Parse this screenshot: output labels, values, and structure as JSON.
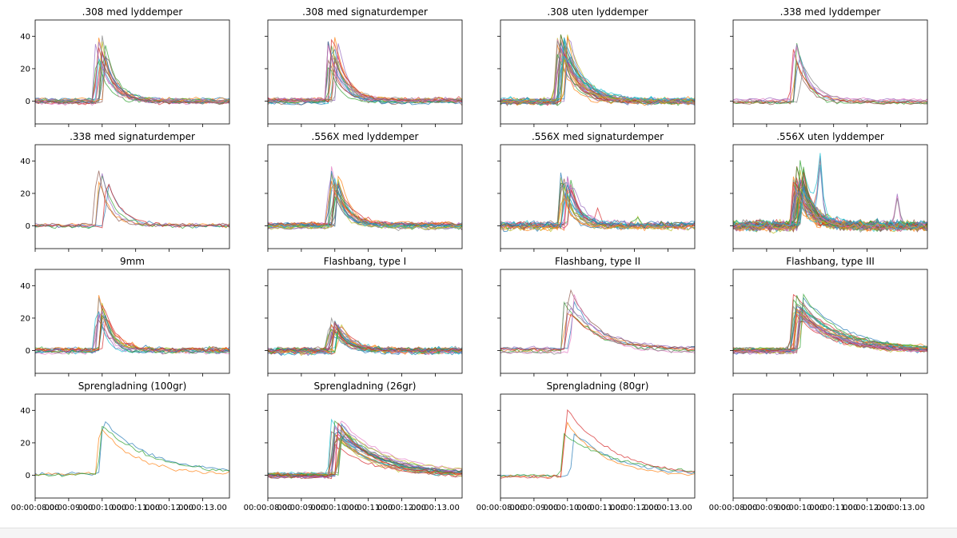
{
  "chart_data": {
    "type": "line",
    "layout": "4x4 grid of small-multiple line plots, shared x and y axes",
    "x_range": [
      "00:00:08.00",
      "00:00:13.80"
    ],
    "x_ticks": [
      "00:00:08.00",
      "00:00:09.00",
      "00:00:10.00",
      "00:00:11.00",
      "00:00:12.00",
      "00:00:13.00"
    ],
    "y_range": [
      -14,
      50
    ],
    "y_ticks": [
      0,
      20,
      40
    ],
    "grid": false,
    "series_palette": [
      "#1f77b4",
      "#ff7f0e",
      "#2ca02c",
      "#d62728",
      "#9467bd",
      "#8c564b",
      "#e377c2",
      "#7f7f7f",
      "#bcbd22",
      "#17becf"
    ],
    "panels": [
      {
        "title": ".308 med lyddemper",
        "n_series": 18,
        "onset_s": 9.85,
        "peak": 40,
        "decay_s": 0.35,
        "noise": 1.2,
        "spurs": []
      },
      {
        "title": ".308 med signaturdemper",
        "n_series": 18,
        "onset_s": 9.85,
        "peak": 42,
        "decay_s": 0.35,
        "noise": 1.2,
        "spurs": []
      },
      {
        "title": ".308 uten lyddemper",
        "n_series": 30,
        "onset_s": 9.75,
        "peak": 42,
        "decay_s": 0.5,
        "noise": 1.5,
        "spurs": []
      },
      {
        "title": ".338 med lyddemper",
        "n_series": 8,
        "onset_s": 9.8,
        "peak": 40,
        "decay_s": 0.35,
        "noise": 1.0,
        "spurs": []
      },
      {
        "title": ".338 med signaturdemper",
        "n_series": 6,
        "onset_s": 9.9,
        "peak": 41,
        "decay_s": 0.35,
        "noise": 1.2,
        "spurs": []
      },
      {
        "title": ".556X med lyddemper",
        "n_series": 22,
        "onset_s": 9.9,
        "peak": 36,
        "decay_s": 0.35,
        "noise": 1.3,
        "spurs": []
      },
      {
        "title": ".556X med signaturdemper",
        "n_series": 22,
        "onset_s": 9.85,
        "peak": 34,
        "decay_s": 0.3,
        "noise": 2.0,
        "spurs": [
          {
            "x": 10.9,
            "y": 8
          },
          {
            "x": 12.1,
            "y": 6
          }
        ]
      },
      {
        "title": ".556X uten lyddemper",
        "n_series": 60,
        "onset_s": 9.85,
        "peak": 36,
        "decay_s": 0.35,
        "noise": 2.5,
        "spurs": [
          {
            "x": 10.6,
            "y": 35
          },
          {
            "x": 12.9,
            "y": 20
          }
        ]
      },
      {
        "title": "9mm",
        "n_series": 15,
        "onset_s": 9.85,
        "peak": 33,
        "decay_s": 0.3,
        "noise": 1.5,
        "spurs": []
      },
      {
        "title": "Flashbang, type I",
        "n_series": 25,
        "onset_s": 9.9,
        "peak": 20,
        "decay_s": 0.4,
        "noise": 1.5,
        "spurs": []
      },
      {
        "title": "Flashbang, type II",
        "n_series": 8,
        "onset_s": 9.95,
        "peak": 38,
        "decay_s": 0.9,
        "noise": 1.0,
        "spurs": []
      },
      {
        "title": "Flashbang, type III",
        "n_series": 28,
        "onset_s": 9.85,
        "peak": 34,
        "decay_s": 1.1,
        "noise": 1.2,
        "spurs": []
      },
      {
        "title": "Sprengladning (100gr)",
        "n_series": 3,
        "onset_s": 10.0,
        "peak": 40,
        "decay_s": 1.4,
        "noise": 1.0,
        "spurs": []
      },
      {
        "title": "Sprengladning (26gr)",
        "n_series": 25,
        "onset_s": 9.95,
        "peak": 34,
        "decay_s": 1.3,
        "noise": 1.0,
        "spurs": []
      },
      {
        "title": "Sprengladning (80gr)",
        "n_series": 4,
        "onset_s": 9.95,
        "peak": 42,
        "decay_s": 1.6,
        "noise": 1.0,
        "spurs": []
      },
      {
        "title": "",
        "n_series": 0,
        "empty": true
      }
    ]
  }
}
